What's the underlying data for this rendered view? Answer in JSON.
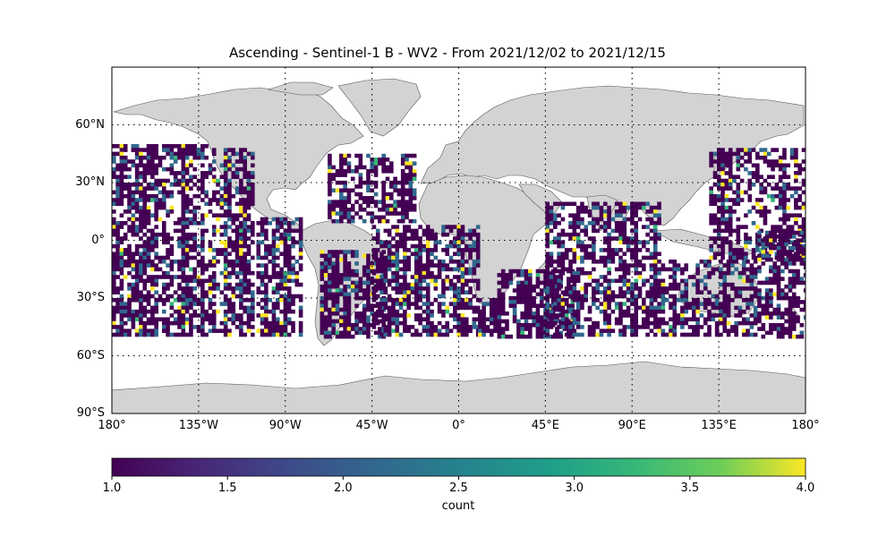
{
  "title": "Ascending - Sentinel-1 B - WV2 - From 2021/12/02 to 2021/12/15",
  "lat_ticks": [
    "60°N",
    "30°N",
    "0°",
    "30°S",
    "60°S",
    "90°S"
  ],
  "lat_values": [
    60,
    30,
    0,
    -30,
    -60,
    -90
  ],
  "lon_ticks": [
    "180°",
    "135°W",
    "90°W",
    "45°W",
    "0°",
    "45°E",
    "90°E",
    "135°E",
    "180°"
  ],
  "lon_values": [
    -180,
    -135,
    -90,
    -45,
    0,
    45,
    90,
    135,
    180
  ],
  "colorbar": {
    "label": "count",
    "ticks": [
      "1.0",
      "1.5",
      "2.0",
      "2.5",
      "3.0",
      "3.5",
      "4.0"
    ],
    "min": 1.0,
    "max": 4.0
  },
  "colors": {
    "land": "#d3d3d3",
    "coast": "#555555",
    "count_1": "#440154",
    "count_2": "#31688e",
    "count_3": "#35b779",
    "count_4": "#fde725"
  },
  "chart_data": {
    "type": "heatmap",
    "title": "Ascending - Sentinel-1 B - WV2 - From 2021/12/02 to 2021/12/15",
    "projection": "PlateCarree",
    "xlim": [
      -180,
      180
    ],
    "ylim": [
      -90,
      90
    ],
    "grid": true,
    "colormap": "viridis",
    "value_range": [
      1,
      4
    ],
    "data_lat_extent": [
      -50,
      50
    ],
    "swaths": [
      {
        "lon": [
          -180,
          -128
        ],
        "lat": [
          -50,
          50
        ]
      },
      {
        "lon": [
          -128,
          -107
        ],
        "lat": [
          -50,
          48
        ]
      },
      {
        "lon": [
          -105,
          -82
        ],
        "lat": [
          -50,
          12
        ]
      },
      {
        "lon": [
          -72,
          -38
        ],
        "lat": [
          -50,
          -5
        ]
      },
      {
        "lon": [
          -68,
          -22
        ],
        "lat": [
          10,
          45
        ]
      },
      {
        "lon": [
          -45,
          10
        ],
        "lat": [
          -50,
          8
        ]
      },
      {
        "lon": [
          10,
          20
        ],
        "lat": [
          -50,
          -30
        ]
      },
      {
        "lon": [
          20,
          60
        ],
        "lat": [
          -50,
          -15
        ]
      },
      {
        "lon": [
          45,
          105
        ],
        "lat": [
          -50,
          20
        ]
      },
      {
        "lon": [
          105,
          155
        ],
        "lat": [
          -50,
          -10
        ]
      },
      {
        "lon": [
          130,
          180
        ],
        "lat": [
          -10,
          48
        ]
      },
      {
        "lon": [
          155,
          180
        ],
        "lat": [
          -50,
          5
        ]
      }
    ]
  }
}
